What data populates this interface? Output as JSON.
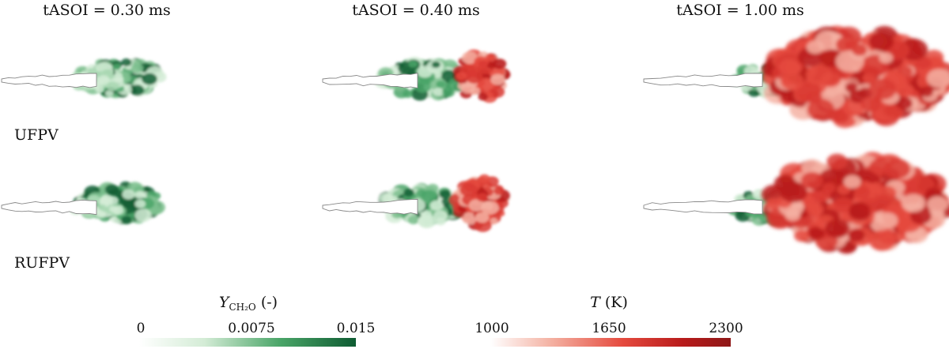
{
  "columns": [
    {
      "title": "tASOI = 0.30 ms"
    },
    {
      "title": "tASOI = 0.40 ms"
    },
    {
      "title": "tASOI = 1.00 ms"
    }
  ],
  "rows": [
    {
      "label": "UFPV"
    },
    {
      "label": "RUFPV"
    }
  ],
  "colorbars": [
    {
      "title_main": "Y",
      "title_sub": "CH₂O",
      "title_unit": "(-)",
      "ticks": [
        "0",
        "0.0075",
        "0.015"
      ],
      "color_low": "#ffffff",
      "color_high": "#0e5b32"
    },
    {
      "title_main": "T",
      "title_unit": "(K)",
      "ticks": [
        "1000",
        "1650",
        "2300"
      ],
      "color_low": "#ffffff",
      "color_high": "#8e1717"
    }
  ],
  "colors": {
    "green_light": "#d4ecd6",
    "green_mid": "#4aa568",
    "green_dark": "#135f35",
    "red_light": "#f4b2a3",
    "red_mid": "#e54a3e",
    "red_dark": "#b81b1b",
    "outline": "#888888"
  },
  "panels": [
    {
      "row": 0,
      "col": 0,
      "stage": "early"
    },
    {
      "row": 0,
      "col": 1,
      "stage": "ignition"
    },
    {
      "row": 0,
      "col": 2,
      "stage": "burning"
    },
    {
      "row": 1,
      "col": 0,
      "stage": "early"
    },
    {
      "row": 1,
      "col": 1,
      "stage": "ignition"
    },
    {
      "row": 1,
      "col": 2,
      "stage": "burning"
    }
  ]
}
